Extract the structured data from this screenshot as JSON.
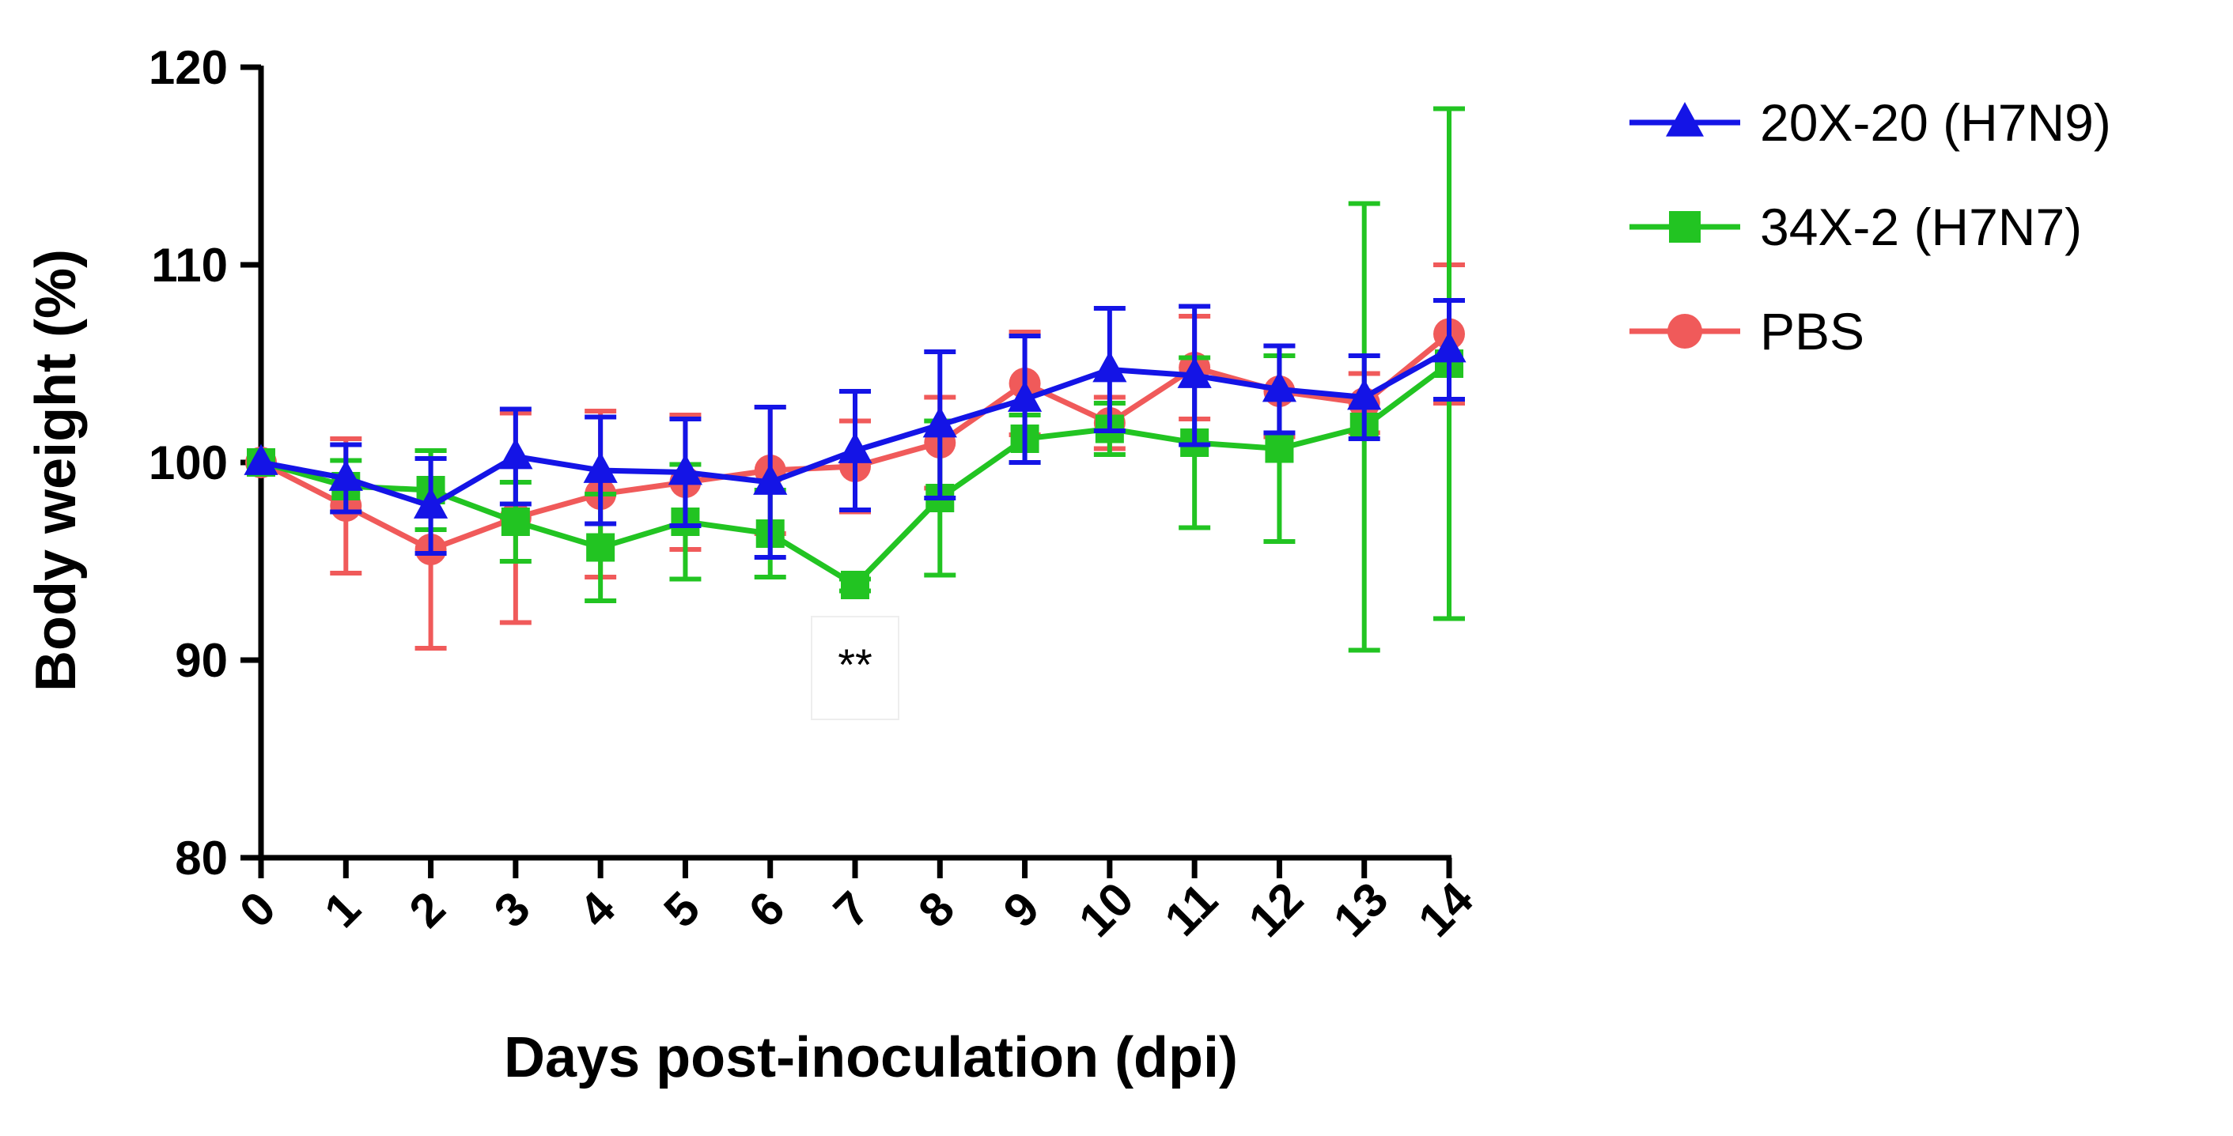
{
  "chart_data": {
    "type": "line",
    "title": "",
    "xlabel": "Days post-inoculation (dpi)",
    "ylabel": "Body weight (%)",
    "x": [
      0,
      1,
      2,
      3,
      4,
      5,
      6,
      7,
      8,
      9,
      10,
      11,
      12,
      13,
      14
    ],
    "xticks": [
      "0",
      "1",
      "2",
      "3",
      "4",
      "5",
      "6",
      "7",
      "8",
      "9",
      "10",
      "11",
      "12",
      "13",
      "14"
    ],
    "xlim": [
      0,
      14
    ],
    "ylim": [
      80,
      120
    ],
    "yticks": [
      "80",
      "90",
      "100",
      "110",
      "120"
    ],
    "grid": false,
    "legend_position": "top-right, outside plot",
    "series": [
      {
        "name": "PBS",
        "color": "#f05a5a",
        "marker": "circle",
        "values": [
          100,
          97.8,
          95.6,
          97.2,
          98.4,
          99.0,
          99.6,
          99.8,
          101.0,
          104.0,
          102.0,
          104.8,
          103.6,
          103.0,
          106.5
        ],
        "errors": [
          0,
          3.4,
          5.0,
          5.3,
          4.2,
          3.4,
          3.2,
          2.3,
          2.3,
          2.6,
          1.3,
          2.6,
          2.3,
          1.5,
          3.5
        ]
      },
      {
        "name": "34X-2 (H7N7)",
        "color": "#22c422",
        "marker": "square",
        "values": [
          100,
          98.8,
          98.6,
          97.0,
          95.7,
          97.0,
          96.4,
          93.8,
          98.2,
          101.2,
          101.7,
          101.0,
          100.7,
          101.8,
          105.0
        ],
        "errors": [
          0,
          1.3,
          2.0,
          2.0,
          2.7,
          2.9,
          2.2,
          0.3,
          3.9,
          1.2,
          1.3,
          4.3,
          4.7,
          11.3,
          12.9
        ]
      },
      {
        "name": "20X-20 (H7N9)",
        "color": "#1414e6",
        "marker": "triangle",
        "values": [
          100,
          99.2,
          97.8,
          100.3,
          99.6,
          99.5,
          99.0,
          100.6,
          101.9,
          103.2,
          104.7,
          104.4,
          103.7,
          103.3,
          105.7
        ],
        "errors": [
          0,
          1.7,
          2.4,
          2.4,
          2.7,
          2.7,
          3.8,
          3.0,
          3.7,
          3.2,
          3.1,
          3.5,
          2.2,
          2.1,
          2.5
        ]
      }
    ],
    "legend_order": [
      "20X-20 (H7N9)",
      "34X-2 (H7N7)",
      "PBS"
    ],
    "annotations": [
      {
        "text": "**",
        "x": 7,
        "y": 90
      }
    ]
  }
}
